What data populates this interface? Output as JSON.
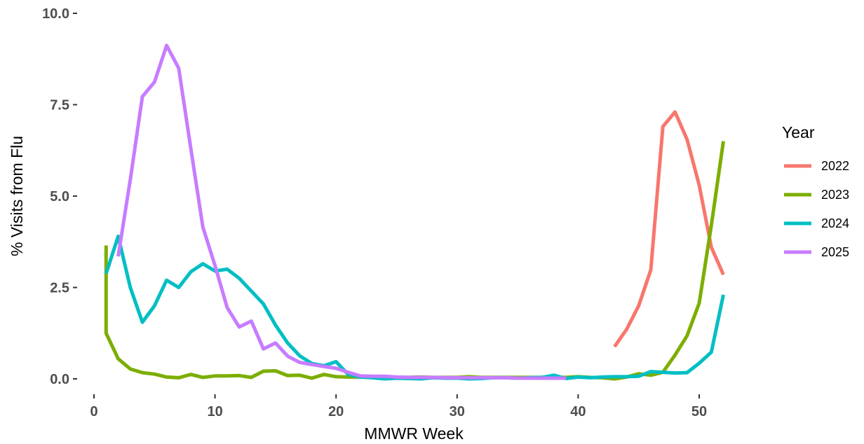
{
  "chart_data": {
    "type": "line",
    "title": "",
    "xlabel": "MMWR Week",
    "ylabel": "% Visits from Flu",
    "xlim": [
      0,
      52
    ],
    "ylim": [
      0,
      10
    ],
    "x_ticks": [
      0,
      10,
      20,
      30,
      40,
      50
    ],
    "x_tick_labels": [
      "0",
      "10",
      "20",
      "30",
      "40",
      "50"
    ],
    "y_ticks": [
      0,
      2.5,
      5,
      7.5,
      10
    ],
    "y_tick_labels": [
      "0.0",
      "2.5",
      "5.0",
      "7.5",
      "10.0"
    ],
    "grid": false,
    "legend": {
      "title": "Year",
      "position": "right"
    },
    "series": [
      {
        "name": "2022",
        "color": "#F8766D",
        "x": [
          43,
          44,
          45,
          46,
          47,
          48,
          49,
          50,
          51,
          52
        ],
        "values": [
          0.88,
          1.35,
          2.0,
          2.98,
          6.9,
          7.3,
          6.55,
          5.3,
          3.6,
          2.85
        ]
      },
      {
        "name": "2023",
        "color": "#7CAE00",
        "x": [
          1,
          1,
          2,
          3,
          4,
          5,
          6,
          7,
          8,
          9,
          10,
          11,
          12,
          13,
          14,
          15,
          16,
          17,
          18,
          19,
          20,
          21,
          22,
          23,
          24,
          25,
          26,
          27,
          28,
          29,
          30,
          31,
          32,
          33,
          34,
          35,
          36,
          37,
          38,
          39,
          40,
          41,
          42,
          43,
          44,
          45,
          46,
          47,
          48,
          49,
          50,
          51,
          52
        ],
        "values": [
          3.65,
          1.25,
          0.55,
          0.27,
          0.17,
          0.13,
          0.05,
          0.03,
          0.12,
          0.04,
          0.08,
          0.08,
          0.09,
          0.04,
          0.21,
          0.22,
          0.09,
          0.1,
          0.02,
          0.12,
          0.06,
          0.05,
          0.05,
          0.05,
          0.04,
          0.04,
          0.04,
          0.05,
          0.04,
          0.04,
          0.04,
          0.06,
          0.04,
          0.04,
          0.04,
          0.04,
          0.04,
          0.04,
          0.04,
          0.04,
          0.06,
          0.04,
          0.03,
          0.0,
          0.05,
          0.14,
          0.1,
          0.18,
          0.65,
          1.18,
          2.07,
          4.2,
          6.5
        ]
      },
      {
        "name": "2024",
        "color": "#00BFC4",
        "x": [
          1,
          2,
          3,
          4,
          5,
          6,
          7,
          8,
          9,
          10,
          11,
          12,
          13,
          14,
          15,
          16,
          17,
          18,
          19,
          20,
          21,
          22,
          23,
          24,
          25,
          26,
          27,
          28,
          29,
          30,
          31,
          32,
          33,
          34,
          35,
          36,
          37,
          38,
          39,
          40,
          41,
          42,
          43,
          44,
          45,
          46,
          47,
          48,
          49,
          50,
          51,
          52
        ],
        "values": [
          2.88,
          3.9,
          2.5,
          1.55,
          2.0,
          2.7,
          2.5,
          2.93,
          3.15,
          2.95,
          3.0,
          2.75,
          2.4,
          2.05,
          1.47,
          0.98,
          0.63,
          0.42,
          0.36,
          0.47,
          0.12,
          0.05,
          0.03,
          0.0,
          0.02,
          0.01,
          0.0,
          0.03,
          0.02,
          0.02,
          0.0,
          0.01,
          0.03,
          0.03,
          0.02,
          0.03,
          0.04,
          0.1,
          0.01,
          0.05,
          0.03,
          0.05,
          0.06,
          0.06,
          0.07,
          0.2,
          0.18,
          0.16,
          0.17,
          0.43,
          0.73,
          2.3
        ]
      },
      {
        "name": "2025",
        "color": "#C77CFF",
        "x": [
          2,
          3,
          4,
          5,
          6,
          7,
          8,
          9,
          10,
          11,
          12,
          13,
          14,
          15,
          16,
          17,
          18,
          19,
          20,
          21,
          22,
          23,
          24,
          25,
          26,
          27,
          28,
          29,
          30,
          31,
          32,
          33,
          34,
          35,
          36,
          37,
          38,
          39
        ],
        "values": [
          3.35,
          5.45,
          7.72,
          8.12,
          9.12,
          8.5,
          6.3,
          4.15,
          3.1,
          1.95,
          1.42,
          1.58,
          0.82,
          0.98,
          0.62,
          0.45,
          0.39,
          0.34,
          0.29,
          0.18,
          0.08,
          0.07,
          0.07,
          0.05,
          0.04,
          0.04,
          0.04,
          0.03,
          0.03,
          0.03,
          0.03,
          0.03,
          0.03,
          0.02,
          0.02,
          0.02,
          0.02,
          0.02
        ]
      }
    ]
  }
}
